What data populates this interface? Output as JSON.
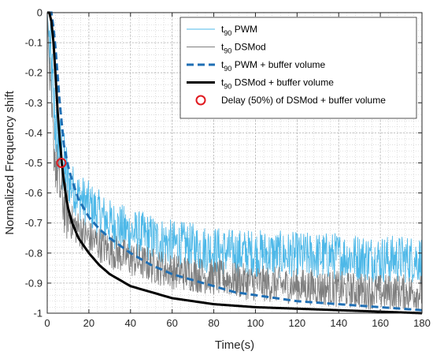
{
  "chart_data": {
    "type": "line",
    "title": "",
    "xlabel": "Time(s)",
    "ylabel": "Normalized Frequency shift",
    "xlim": [
      0,
      180
    ],
    "ylim": [
      -1,
      0
    ],
    "xticks": [
      0,
      20,
      40,
      60,
      80,
      100,
      120,
      140,
      160,
      180
    ],
    "yticks": [
      0,
      -0.1,
      -0.2,
      -0.3,
      -0.4,
      -0.5,
      -0.6,
      -0.7,
      -0.8,
      -0.9,
      -1
    ],
    "ytick_labels": [
      "0",
      "-0.1",
      "-0.2",
      "-0.3",
      "-0.4",
      "-0.5",
      "-0.6",
      "-0.7",
      "-0.8",
      "-0.9",
      "-1"
    ],
    "grid": true,
    "minor_grid": true,
    "legend_position": "top-right",
    "series": [
      {
        "name": "t90 PWM",
        "legend_main": "t",
        "legend_sub": "90",
        "legend_rest": " PWM",
        "style": "thin-noisy",
        "color": "#4db8e8",
        "noise_amplitude": 0.08,
        "x": [
          0,
          2,
          4,
          6,
          8,
          10,
          12,
          15,
          20,
          25,
          30,
          40,
          50,
          60,
          70,
          80,
          90,
          100,
          120,
          140,
          160,
          180
        ],
        "y": [
          0,
          -0.2,
          -0.38,
          -0.46,
          -0.52,
          -0.56,
          -0.58,
          -0.61,
          -0.64,
          -0.67,
          -0.7,
          -0.73,
          -0.75,
          -0.77,
          -0.78,
          -0.79,
          -0.8,
          -0.8,
          -0.81,
          -0.81,
          -0.82,
          -0.82
        ]
      },
      {
        "name": "t90 DSMod",
        "legend_main": "t",
        "legend_sub": "90",
        "legend_rest": " DSMod",
        "style": "thin-noisy",
        "color": "#7f7f7f",
        "noise_amplitude": 0.06,
        "x": [
          0,
          2,
          4,
          6,
          8,
          10,
          12,
          15,
          20,
          25,
          30,
          40,
          50,
          60,
          70,
          80,
          90,
          100,
          120,
          140,
          160,
          180
        ],
        "y": [
          0,
          -0.35,
          -0.5,
          -0.58,
          -0.64,
          -0.68,
          -0.7,
          -0.72,
          -0.75,
          -0.77,
          -0.79,
          -0.82,
          -0.84,
          -0.86,
          -0.87,
          -0.88,
          -0.89,
          -0.9,
          -0.91,
          -0.92,
          -0.93,
          -0.93
        ]
      },
      {
        "name": "t90 PWM + buffer volume",
        "legend_main": "t",
        "legend_sub": "90",
        "legend_rest": " PWM + buffer volume",
        "style": "dashed",
        "color": "#1f6fb4",
        "x": [
          0,
          2,
          3,
          4,
          6,
          8,
          10,
          12,
          15,
          20,
          25,
          30,
          40,
          50,
          60,
          70,
          80,
          90,
          100,
          110,
          120,
          140,
          160,
          180
        ],
        "y": [
          0,
          0,
          -0.05,
          -0.12,
          -0.3,
          -0.44,
          -0.51,
          -0.56,
          -0.62,
          -0.68,
          -0.72,
          -0.75,
          -0.8,
          -0.84,
          -0.87,
          -0.89,
          -0.91,
          -0.93,
          -0.94,
          -0.95,
          -0.96,
          -0.97,
          -0.98,
          -0.99
        ]
      },
      {
        "name": "t90 DSMod + buffer volume",
        "legend_main": "t",
        "legend_sub": "90",
        "legend_rest": " DSMod + buffer volume",
        "style": "thick",
        "color": "#000000",
        "x": [
          0,
          1,
          2,
          3,
          4,
          5,
          6,
          7,
          8,
          9,
          10,
          12,
          15,
          20,
          25,
          30,
          40,
          50,
          60,
          70,
          80,
          100,
          120,
          140,
          160,
          180
        ],
        "y": [
          0,
          0,
          -0.03,
          -0.1,
          -0.21,
          -0.33,
          -0.42,
          -0.5,
          -0.56,
          -0.61,
          -0.65,
          -0.7,
          -0.75,
          -0.8,
          -0.84,
          -0.87,
          -0.91,
          -0.93,
          -0.95,
          -0.96,
          -0.97,
          -0.98,
          -0.985,
          -0.99,
          -0.995,
          -1.0
        ]
      },
      {
        "name": "Delay (50%) of DSMod + buffer volume",
        "legend_label": "Delay (50%) of DSMod + buffer volume",
        "style": "marker",
        "color": "#e0191f",
        "x": [
          6.8
        ],
        "y": [
          -0.5
        ]
      }
    ]
  }
}
